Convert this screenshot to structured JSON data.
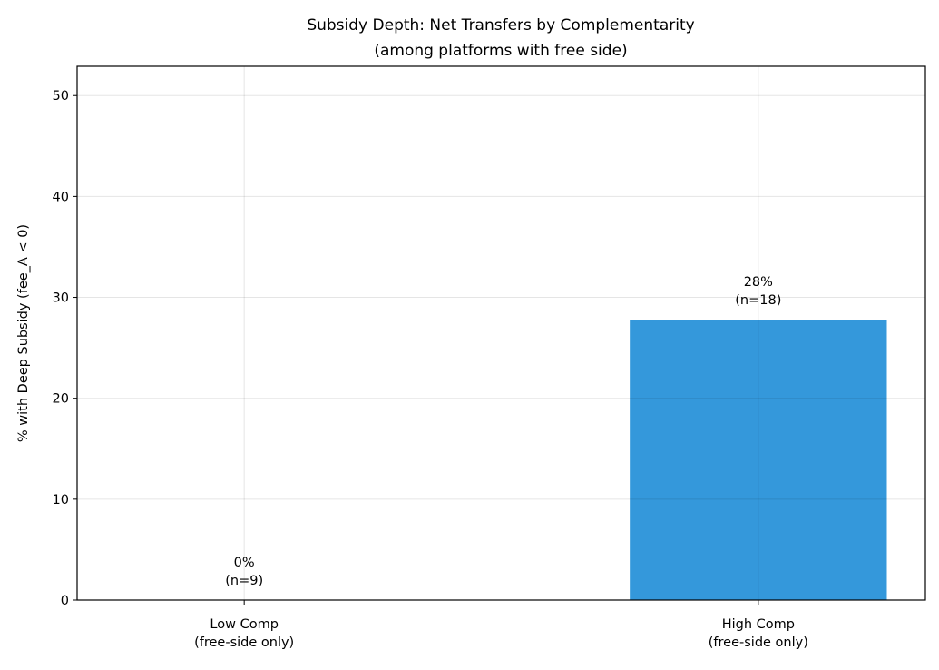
{
  "chart_data": {
    "type": "bar",
    "title": "Subsidy Depth: Net Transfers by Complementarity",
    "subtitle": "(among platforms with free side)",
    "xlabel": "",
    "ylabel": "% with Deep Subsidy (fee_A < 0)",
    "categories": [
      "Low Comp\n(free-side only)",
      "High Comp\n(free-side only)"
    ],
    "category_lines": [
      [
        "Low Comp",
        "(free-side only)"
      ],
      [
        "High Comp",
        "(free-side only)"
      ]
    ],
    "values": [
      0,
      27.78
    ],
    "data_labels": [
      [
        "0%",
        "(n=9)"
      ],
      [
        "28%",
        "(n=18)"
      ]
    ],
    "ylim": [
      0,
      52.9
    ],
    "yticks": [
      0,
      10,
      20,
      30,
      40,
      50
    ],
    "grid": true,
    "bar_color": "#3498db"
  }
}
